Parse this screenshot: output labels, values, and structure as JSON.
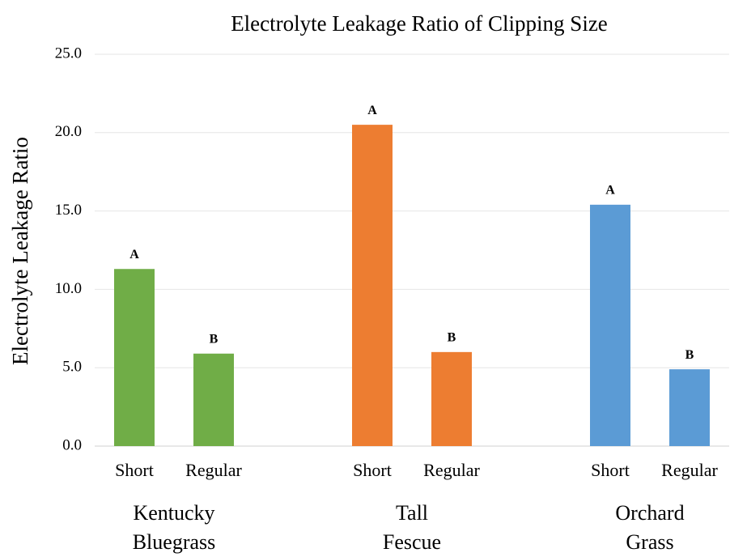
{
  "chart_data": {
    "type": "bar",
    "title": "Electrolyte Leakage Ratio of Clipping Size",
    "y_label": "Electrolyte Leakage Ratio",
    "ylim": [
      0,
      25
    ],
    "yticks": [
      {
        "value": 0,
        "label": "0.0"
      },
      {
        "value": 5,
        "label": "5.0"
      },
      {
        "value": 10,
        "label": "10.0"
      },
      {
        "value": 15,
        "label": "15.0"
      },
      {
        "value": 20,
        "label": "20.0"
      },
      {
        "value": 25,
        "label": "25.0"
      }
    ],
    "grid": true,
    "groups": [
      {
        "name": [
          "Kentucky",
          "Bluegrass"
        ],
        "color": "#70ad47",
        "categories": [
          "Short",
          "Regular"
        ],
        "values": [
          11.3,
          5.9
        ],
        "letters": [
          "A",
          "B"
        ]
      },
      {
        "name": [
          "Tall",
          "Fescue"
        ],
        "color": "#ed7d31",
        "categories": [
          "Short",
          "Regular"
        ],
        "values": [
          20.5,
          6.0
        ],
        "letters": [
          "A",
          "B"
        ]
      },
      {
        "name": [
          "Orchard",
          "Grass"
        ],
        "color": "#5b9bd5",
        "categories": [
          "Short",
          "Regular"
        ],
        "values": [
          15.4,
          4.9
        ],
        "letters": [
          "A",
          "B"
        ]
      }
    ]
  }
}
